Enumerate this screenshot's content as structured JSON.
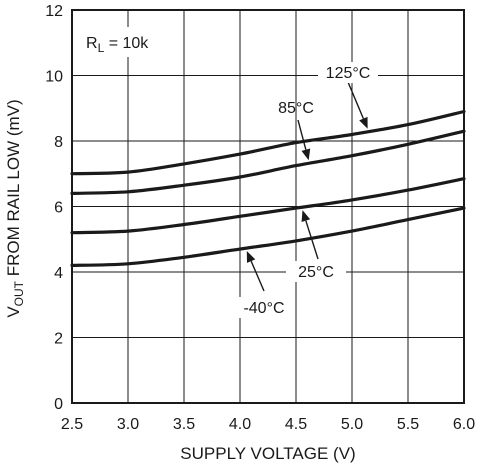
{
  "chart_data": {
    "type": "line",
    "xlabel": "SUPPLY VOLTAGE (V)",
    "ylabel_main": "V",
    "ylabel_sub": "OUT",
    "ylabel_rest": " FROM RAIL LOW (mV)",
    "xlim": [
      2.5,
      6.0
    ],
    "ylim": [
      0,
      12
    ],
    "x_ticks": [
      "2.5",
      "3.0",
      "3.5",
      "4.0",
      "4.5",
      "5.0",
      "5.5",
      "6.0"
    ],
    "y_ticks": [
      "0",
      "2",
      "4",
      "6",
      "8",
      "10",
      "12"
    ],
    "grid": true,
    "load_label_main": "R",
    "load_label_sub": "L",
    "load_label_rest": " = 10k",
    "x": [
      2.5,
      3.0,
      3.5,
      4.0,
      4.5,
      5.0,
      5.5,
      6.0
    ],
    "series": [
      {
        "name": "125°C",
        "values": [
          7.0,
          7.05,
          7.3,
          7.6,
          7.95,
          8.2,
          8.5,
          8.9
        ]
      },
      {
        "name": "85°C",
        "values": [
          6.4,
          6.45,
          6.65,
          6.9,
          7.25,
          7.55,
          7.9,
          8.3
        ]
      },
      {
        "name": "25°C",
        "values": [
          5.2,
          5.25,
          5.45,
          5.7,
          5.95,
          6.2,
          6.5,
          6.85
        ]
      },
      {
        "name": "-40°C",
        "values": [
          4.2,
          4.25,
          4.45,
          4.7,
          4.95,
          5.25,
          5.6,
          5.95
        ]
      }
    ]
  }
}
